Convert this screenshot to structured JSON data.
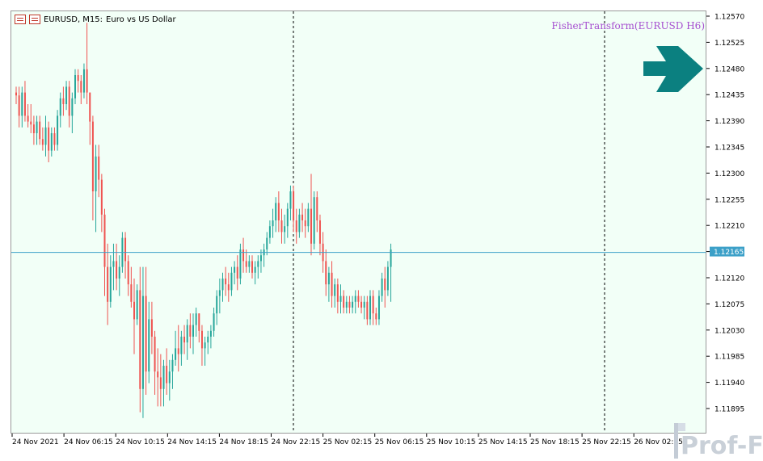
{
  "header": {
    "symbol_text": "EURUSD, M15:",
    "description": "Euro vs US Dollar",
    "icon_left": "chart-properties-icon",
    "icon_right": "bar-chart-icon"
  },
  "indicator": {
    "label": "FisherTransform(EURUSD H6)",
    "color": "#a64fd0",
    "arrow_icon": "right-arrow-icon",
    "arrow_color": "#0b8080"
  },
  "watermark": {
    "text": "Prof-FX"
  },
  "colors": {
    "bull": "#26a69a",
    "bear": "#ef5350",
    "current_line": "#3ca0c8",
    "background": "#f2fff7"
  },
  "chart_data": {
    "type": "candlestick",
    "symbol": "EURUSD",
    "timeframe": "M15",
    "current_price": 1.12165,
    "current_price_label": "1.12165",
    "ylim": [
      1.1186,
      1.1258
    ],
    "y_ticks": [
      "1.12570",
      "1.12525",
      "1.12480",
      "1.12435",
      "1.12390",
      "1.12345",
      "1.12300",
      "1.12255",
      "1.12210",
      "1.12165",
      "1.12120",
      "1.12075",
      "1.12030",
      "1.11985",
      "1.11940",
      "1.11895"
    ],
    "x_ticks": [
      "24 Nov 2021",
      "24 Nov 06:15",
      "24 Nov 10:15",
      "24 Nov 14:15",
      "24 Nov 18:15",
      "24 Nov 22:15",
      "25 Nov 02:15",
      "25 Nov 06:15",
      "25 Nov 10:15",
      "25 Nov 14:15",
      "25 Nov 18:15",
      "25 Nov 22:15",
      "26 Nov 02:15"
    ],
    "period_separators": [
      "25 Nov 00:00",
      "26 Nov 00:00"
    ],
    "candles": [
      [
        1.1244,
        1.1245,
        1.1242,
        1.12435
      ],
      [
        1.12435,
        1.1245,
        1.1238,
        1.124
      ],
      [
        1.124,
        1.1245,
        1.1238,
        1.1244
      ],
      [
        1.1244,
        1.1246,
        1.1239,
        1.124
      ],
      [
        1.124,
        1.1242,
        1.1238,
        1.1239
      ],
      [
        1.1239,
        1.1242,
        1.1237,
        1.12385
      ],
      [
        1.12385,
        1.124,
        1.1235,
        1.1237
      ],
      [
        1.1237,
        1.124,
        1.1235,
        1.1239
      ],
      [
        1.1239,
        1.124,
        1.1235,
        1.1236
      ],
      [
        1.1236,
        1.1238,
        1.1234,
        1.1235
      ],
      [
        1.1235,
        1.124,
        1.1233,
        1.1238
      ],
      [
        1.1238,
        1.1239,
        1.1232,
        1.1234
      ],
      [
        1.1234,
        1.1238,
        1.1233,
        1.1237
      ],
      [
        1.1237,
        1.1238,
        1.1234,
        1.1235
      ],
      [
        1.1235,
        1.1241,
        1.1234,
        1.124
      ],
      [
        1.124,
        1.1244,
        1.1238,
        1.1243
      ],
      [
        1.1243,
        1.1245,
        1.124,
        1.1242
      ],
      [
        1.1242,
        1.1246,
        1.1241,
        1.1245
      ],
      [
        1.1245,
        1.1246,
        1.1238,
        1.124
      ],
      [
        1.124,
        1.1244,
        1.1237,
        1.1243
      ],
      [
        1.1243,
        1.1248,
        1.1242,
        1.1247
      ],
      [
        1.1247,
        1.1248,
        1.1244,
        1.1246
      ],
      [
        1.1246,
        1.1247,
        1.1242,
        1.1244
      ],
      [
        1.1244,
        1.1249,
        1.1243,
        1.1248
      ],
      [
        1.1248,
        1.1256,
        1.1242,
        1.1244
      ],
      [
        1.1244,
        1.1244,
        1.1235,
        1.1239
      ],
      [
        1.1239,
        1.124,
        1.1222,
        1.1227
      ],
      [
        1.1227,
        1.1235,
        1.122,
        1.1233
      ],
      [
        1.1233,
        1.1235,
        1.1226,
        1.1229
      ],
      [
        1.1229,
        1.123,
        1.122,
        1.1223
      ],
      [
        1.1223,
        1.1224,
        1.1209,
        1.1214
      ],
      [
        1.1214,
        1.1218,
        1.1204,
        1.1208
      ],
      [
        1.1208,
        1.1216,
        1.1207,
        1.1214
      ],
      [
        1.1214,
        1.1218,
        1.121,
        1.1215
      ],
      [
        1.1215,
        1.1218,
        1.121,
        1.1212
      ],
      [
        1.1212,
        1.1216,
        1.1209,
        1.1214
      ],
      [
        1.1214,
        1.122,
        1.1213,
        1.1219
      ],
      [
        1.1219,
        1.122,
        1.1212,
        1.1215
      ],
      [
        1.1215,
        1.1216,
        1.1209,
        1.1211
      ],
      [
        1.1211,
        1.1214,
        1.1207,
        1.1208
      ],
      [
        1.1208,
        1.1212,
        1.1199,
        1.1205
      ],
      [
        1.1205,
        1.1211,
        1.1204,
        1.121
      ],
      [
        1.121,
        1.1214,
        1.1189,
        1.1193
      ],
      [
        1.1193,
        1.1214,
        1.1188,
        1.1209
      ],
      [
        1.1209,
        1.1214,
        1.1192,
        1.1196
      ],
      [
        1.1196,
        1.1208,
        1.1194,
        1.1205
      ],
      [
        1.1205,
        1.1208,
        1.1199,
        1.1202
      ],
      [
        1.1202,
        1.1203,
        1.1192,
        1.1196
      ],
      [
        1.1196,
        1.12,
        1.119,
        1.1195
      ],
      [
        1.1195,
        1.1199,
        1.119,
        1.1193
      ],
      [
        1.1193,
        1.1198,
        1.119,
        1.1197
      ],
      [
        1.1197,
        1.12,
        1.1192,
        1.1194
      ],
      [
        1.1194,
        1.1198,
        1.1191,
        1.1196
      ],
      [
        1.1196,
        1.1199,
        1.1193,
        1.1198
      ],
      [
        1.1198,
        1.1203,
        1.1197,
        1.12
      ],
      [
        1.12,
        1.1204,
        1.1196,
        1.1199
      ],
      [
        1.1199,
        1.1203,
        1.1197,
        1.1202
      ],
      [
        1.1202,
        1.1204,
        1.1199,
        1.1201
      ],
      [
        1.1201,
        1.1205,
        1.1198,
        1.1204
      ],
      [
        1.1204,
        1.1206,
        1.12,
        1.1202
      ],
      [
        1.1202,
        1.1206,
        1.1199,
        1.1204
      ],
      [
        1.1204,
        1.1207,
        1.1202,
        1.1206
      ],
      [
        1.1206,
        1.1206,
        1.1201,
        1.1203
      ],
      [
        1.1203,
        1.1204,
        1.1197,
        1.12
      ],
      [
        1.12,
        1.1202,
        1.1197,
        1.1201
      ],
      [
        1.1201,
        1.1203,
        1.1199,
        1.1202
      ],
      [
        1.1202,
        1.1204,
        1.12,
        1.1203
      ],
      [
        1.1203,
        1.1207,
        1.1202,
        1.1206
      ],
      [
        1.1206,
        1.121,
        1.1204,
        1.1209
      ],
      [
        1.1209,
        1.1212,
        1.1206,
        1.121
      ],
      [
        1.121,
        1.1213,
        1.1208,
        1.1212
      ],
      [
        1.1212,
        1.1214,
        1.1209,
        1.1211
      ],
      [
        1.1211,
        1.1213,
        1.1208,
        1.121
      ],
      [
        1.121,
        1.1214,
        1.1209,
        1.1213
      ],
      [
        1.1213,
        1.1215,
        1.1211,
        1.1214
      ],
      [
        1.1214,
        1.1216,
        1.121,
        1.1212
      ],
      [
        1.1212,
        1.1218,
        1.1211,
        1.1217
      ],
      [
        1.1217,
        1.1219,
        1.1213,
        1.1215
      ],
      [
        1.1215,
        1.1217,
        1.1213,
        1.1214
      ],
      [
        1.1214,
        1.1216,
        1.1213,
        1.1215
      ],
      [
        1.1215,
        1.1216,
        1.1212,
        1.1213
      ],
      [
        1.1213,
        1.1215,
        1.1211,
        1.1214
      ],
      [
        1.1214,
        1.1216,
        1.1212,
        1.1215
      ],
      [
        1.1215,
        1.1217,
        1.1213,
        1.1216
      ],
      [
        1.1216,
        1.1218,
        1.1214,
        1.1217
      ],
      [
        1.1217,
        1.122,
        1.1216,
        1.1219
      ],
      [
        1.1219,
        1.1222,
        1.1218,
        1.1221
      ],
      [
        1.1221,
        1.1224,
        1.1219,
        1.1222
      ],
      [
        1.1222,
        1.1226,
        1.122,
        1.1225
      ],
      [
        1.1225,
        1.1227,
        1.122,
        1.1222
      ],
      [
        1.1222,
        1.1224,
        1.1218,
        1.122
      ],
      [
        1.122,
        1.1223,
        1.1218,
        1.1221
      ],
      [
        1.1221,
        1.1225,
        1.1219,
        1.1224
      ],
      [
        1.1224,
        1.1228,
        1.1222,
        1.1227
      ],
      [
        1.1227,
        1.1228,
        1.122,
        1.1222
      ],
      [
        1.1222,
        1.1224,
        1.1218,
        1.122
      ],
      [
        1.122,
        1.1224,
        1.1219,
        1.1223
      ],
      [
        1.1223,
        1.1225,
        1.122,
        1.1222
      ],
      [
        1.1222,
        1.1224,
        1.1219,
        1.1221
      ],
      [
        1.1221,
        1.1225,
        1.122,
        1.1224
      ],
      [
        1.1224,
        1.123,
        1.1216,
        1.1218
      ],
      [
        1.1218,
        1.1227,
        1.1217,
        1.1226
      ],
      [
        1.1226,
        1.1227,
        1.122,
        1.1222
      ],
      [
        1.1222,
        1.1223,
        1.1216,
        1.1218
      ],
      [
        1.1218,
        1.122,
        1.1213,
        1.1215
      ],
      [
        1.1215,
        1.1217,
        1.1209,
        1.1211
      ],
      [
        1.1211,
        1.1214,
        1.1208,
        1.1213
      ],
      [
        1.1213,
        1.1215,
        1.1207,
        1.1209
      ],
      [
        1.1209,
        1.1212,
        1.1207,
        1.1211
      ],
      [
        1.1211,
        1.1212,
        1.1206,
        1.1208
      ],
      [
        1.1208,
        1.1211,
        1.1206,
        1.1209
      ],
      [
        1.1209,
        1.121,
        1.1206,
        1.1207
      ],
      [
        1.1207,
        1.1209,
        1.1206,
        1.1208
      ],
      [
        1.1208,
        1.1209,
        1.1206,
        1.1207
      ],
      [
        1.1207,
        1.1209,
        1.1206,
        1.1208
      ],
      [
        1.1208,
        1.121,
        1.1206,
        1.1209
      ],
      [
        1.1209,
        1.121,
        1.1207,
        1.1208
      ],
      [
        1.1208,
        1.1209,
        1.1206,
        1.1207
      ],
      [
        1.1207,
        1.1209,
        1.1205,
        1.1208
      ],
      [
        1.1208,
        1.1209,
        1.1204,
        1.1205
      ],
      [
        1.1205,
        1.121,
        1.1204,
        1.1209
      ],
      [
        1.1209,
        1.121,
        1.1204,
        1.1206
      ],
      [
        1.1206,
        1.1207,
        1.1204,
        1.1205
      ],
      [
        1.1205,
        1.121,
        1.1204,
        1.1209
      ],
      [
        1.1209,
        1.1213,
        1.1208,
        1.1212
      ],
      [
        1.1212,
        1.1214,
        1.1207,
        1.121
      ],
      [
        1.121,
        1.1215,
        1.1209,
        1.1214
      ],
      [
        1.1214,
        1.1218,
        1.1208,
        1.1217
      ]
    ]
  }
}
